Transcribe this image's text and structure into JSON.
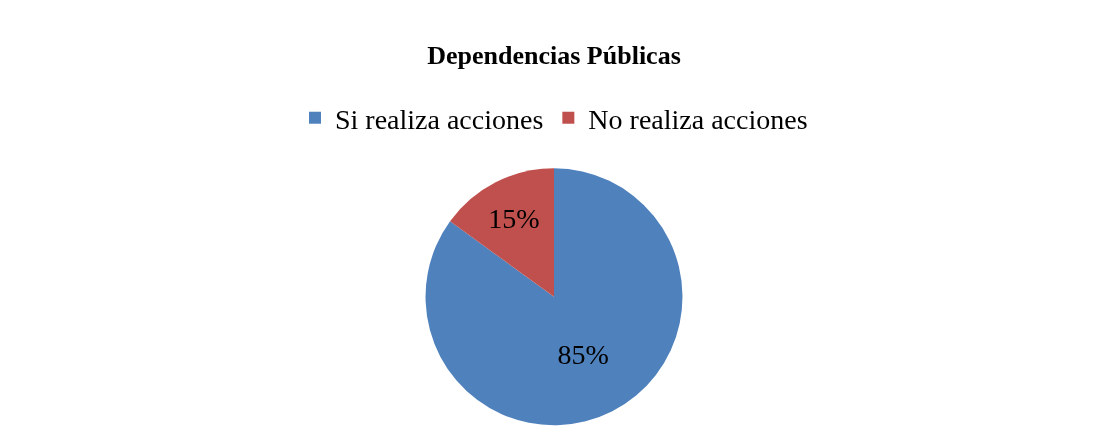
{
  "chart_data": {
    "type": "pie",
    "title": "Dependencias Públicas",
    "categories": [
      "Si realiza acciones",
      "No realiza acciones"
    ],
    "values": [
      85,
      15
    ],
    "value_labels": [
      "85%",
      "15%"
    ],
    "colors": [
      "#4f81bd",
      "#c0504d"
    ],
    "legend": "top"
  }
}
